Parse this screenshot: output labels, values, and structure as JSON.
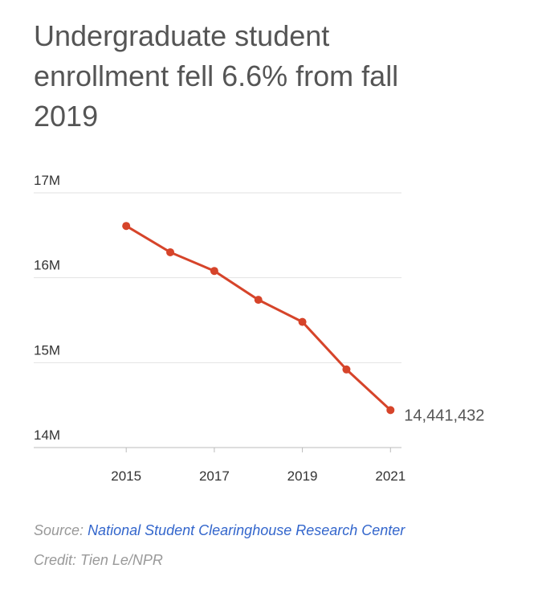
{
  "chart_data": {
    "type": "line",
    "title": "Undergraduate student enrollment fell 6.6% from fall 2019",
    "x": [
      2015,
      2016,
      2017,
      2018,
      2019,
      2020,
      2021
    ],
    "values": [
      16610000,
      16300000,
      16080000,
      15740000,
      15480000,
      14920000,
      14441432
    ],
    "value_labels": [
      null,
      null,
      null,
      null,
      null,
      null,
      "14,441,432"
    ],
    "color": "#d6442a",
    "xlim": [
      2012.9,
      2021.25
    ],
    "xticks": [
      2015,
      2017,
      2019,
      2021
    ],
    "ylim": [
      14000000,
      17000000
    ],
    "yticks": [
      {
        "value": 14000000,
        "label": "14M"
      },
      {
        "value": 15000000,
        "label": "15M"
      },
      {
        "value": 16000000,
        "label": "16M"
      },
      {
        "value": 17000000,
        "label": "17M"
      }
    ],
    "grid": true,
    "source_label": "Source:",
    "source": "National Student Clearinghouse Research Center",
    "credit": "Credit: Tien Le/NPR"
  }
}
